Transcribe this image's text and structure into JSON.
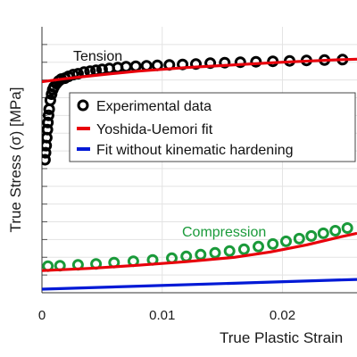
{
  "chart_data": {
    "type": "line",
    "title": "",
    "xlabel": "True Plastic Strain",
    "ylabel": "True Stress (σ) [MPa]",
    "xlim": [
      0,
      0.0262
    ],
    "ylim": [
      -0.2,
      2.8
    ],
    "x_ticks": [
      0,
      0.01,
      0.02
    ],
    "x_tick_labels": [
      "0",
      "0.01",
      "0.02"
    ],
    "grid": true,
    "legend": {
      "position": "upper-right",
      "entries": [
        {
          "label": "Experimental data",
          "marker": "open-circle",
          "color": "#000000"
        },
        {
          "label": "Yoshida-Uemori fit",
          "marker": "line",
          "color": "#e8000b"
        },
        {
          "label": "Fit without kinematic hardening",
          "marker": "line",
          "color": "#0019d6"
        }
      ]
    },
    "annotations": [
      {
        "text": "Tension",
        "color": "#111111"
      },
      {
        "text": "Compression",
        "color": "#1a9a3a"
      }
    ],
    "series": [
      {
        "name": "Experimental data",
        "style": "markers",
        "color": "#000000",
        "x": [
          0.00025,
          0.0003,
          0.00035,
          0.0004,
          0.00045,
          0.0005,
          0.00055,
          0.0006,
          0.0007,
          0.0008,
          0.0009,
          0.001,
          0.0012,
          0.0014,
          0.0016,
          0.0019,
          0.0022,
          0.0026,
          0.003,
          0.0035,
          0.004,
          0.0045,
          0.005,
          0.0056,
          0.0063,
          0.007,
          0.0078,
          0.0087,
          0.0096,
          0.0106,
          0.0117,
          0.0128,
          0.014,
          0.0152,
          0.0165,
          0.0178,
          0.0192,
          0.0206,
          0.022,
          0.0235,
          0.025
        ],
        "y": [
          1.3,
          1.38,
          1.46,
          1.55,
          1.64,
          1.72,
          1.8,
          1.87,
          1.97,
          2.04,
          2.09,
          2.12,
          2.16,
          2.19,
          2.21,
          2.22,
          2.24,
          2.26,
          2.27,
          2.29,
          2.3,
          2.31,
          2.32,
          2.33,
          2.34,
          2.35,
          2.355,
          2.36,
          2.365,
          2.37,
          2.375,
          2.38,
          2.39,
          2.395,
          2.4,
          2.405,
          2.41,
          2.415,
          2.42,
          2.425,
          2.43
        ]
      },
      {
        "name": "Yoshida-Uemori fit",
        "style": "line",
        "color": "#e8000b",
        "x": [
          0,
          0.002,
          0.005,
          0.008,
          0.012,
          0.016,
          0.02,
          0.024,
          0.0262
        ],
        "y": [
          2.18,
          2.215,
          2.26,
          2.3,
          2.34,
          2.37,
          2.4,
          2.425,
          2.435
        ]
      },
      {
        "name": "Experimental data (compression)",
        "style": "markers",
        "color": "#1a9a3a",
        "x": [
          0.0005,
          0.0015,
          0.003,
          0.0045,
          0.006,
          0.0076,
          0.0092,
          0.0108,
          0.012,
          0.0132,
          0.0144,
          0.0156,
          0.0168,
          0.018,
          0.0192,
          0.0203,
          0.0214,
          0.0224,
          0.0234,
          0.0244,
          0.0254
        ],
        "y": [
          0.1,
          0.105,
          0.115,
          0.125,
          0.14,
          0.155,
          0.17,
          0.19,
          0.21,
          0.23,
          0.25,
          0.27,
          0.29,
          0.32,
          0.35,
          0.38,
          0.41,
          0.44,
          0.47,
          0.5,
          0.53
        ]
      },
      {
        "name": "Yoshida-Uemori fit (compression)",
        "style": "line",
        "color": "#e8000b",
        "x": [
          0,
          0.004,
          0.008,
          0.012,
          0.016,
          0.019,
          0.022,
          0.0245,
          0.0262
        ],
        "y": [
          0.05,
          0.075,
          0.11,
          0.15,
          0.2,
          0.26,
          0.34,
          0.42,
          0.47
        ]
      },
      {
        "name": "Fit without kinematic hardening",
        "style": "line",
        "color": "#0019d6",
        "x": [
          0,
          0.0262
        ],
        "y": [
          -0.16,
          -0.05
        ]
      }
    ]
  }
}
